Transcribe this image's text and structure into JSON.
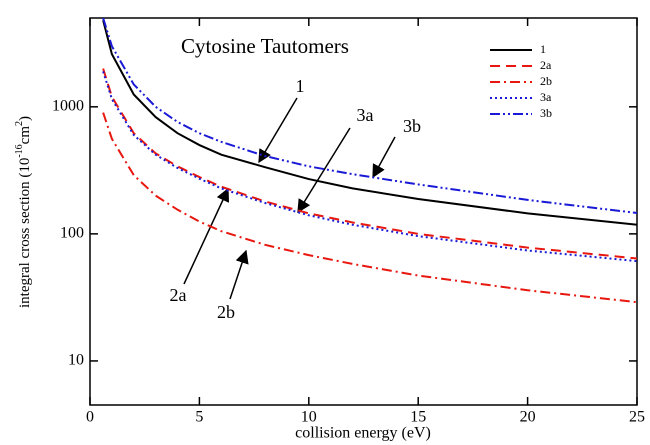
{
  "chart_data": {
    "type": "line",
    "title": "Cytosine Tautomers",
    "x_label": "collision energy (eV)",
    "y_label": {
      "text": "integral cross section (10",
      "exp": "-16",
      "unit": "cm",
      "unit_exp": "2",
      "close": ")"
    },
    "x": [
      0.6,
      1,
      2,
      3,
      4,
      5,
      6,
      8,
      10,
      12,
      15,
      20,
      25
    ],
    "series": [
      {
        "name": "1",
        "color": "#000000",
        "linestyle": "solid",
        "values": [
          4800,
          2600,
          1250,
          830,
          620,
          500,
          420,
          335,
          270,
          228,
          188,
          145,
          118
        ]
      },
      {
        "name": "2a",
        "color": "#e8170f",
        "linestyle": "dashed",
        "values": [
          2000,
          1200,
          620,
          430,
          340,
          280,
          235,
          180,
          145,
          123,
          100,
          78,
          64
        ]
      },
      {
        "name": "2b",
        "color": "#e8170f",
        "linestyle": "dashdot",
        "values": [
          900,
          560,
          290,
          200,
          155,
          125,
          105,
          82,
          68,
          58,
          47,
          36,
          29
        ]
      },
      {
        "name": "3a",
        "color": "#1a1ad6",
        "linestyle": "dotted",
        "values": [
          1900,
          1150,
          600,
          420,
          330,
          272,
          228,
          175,
          140,
          118,
          96,
          74,
          61
        ]
      },
      {
        "name": "3b",
        "color": "#1a1ad6",
        "linestyle": "dashdotdot",
        "values": [
          5000,
          3000,
          1500,
          1000,
          760,
          620,
          530,
          410,
          340,
          295,
          245,
          185,
          146
        ]
      }
    ],
    "xlim": [
      0,
      25
    ],
    "xticks": [
      0,
      5,
      10,
      15,
      20,
      25
    ],
    "ylim": [
      4.5,
      5000
    ],
    "yticks": [
      10,
      100,
      1000
    ],
    "y_scale": "log",
    "legend": "upper right",
    "annotations": [
      {
        "text": "1",
        "color": "#000000"
      },
      {
        "text": "3a",
        "color": "#1a1ad6"
      },
      {
        "text": "3b",
        "color": "#1a1ad6"
      },
      {
        "text": "2a",
        "color": "#e8170f"
      },
      {
        "text": "2b",
        "color": "#e8170f"
      }
    ]
  }
}
